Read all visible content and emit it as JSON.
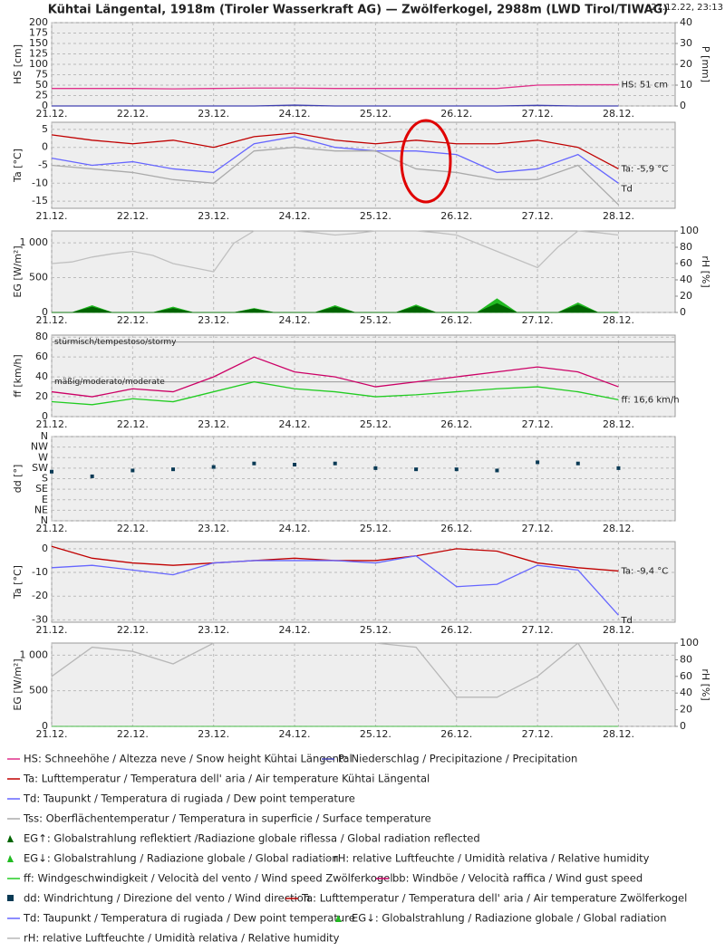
{
  "header": {
    "title": "Kühtai Längental, 1918m (Tiroler Wasserkraft AG) — Zwölferkogel, 2988m (LWD Tirol/TIWAG)",
    "timestamp": "27.12.22, 23:13"
  },
  "chart_data": [
    {
      "type": "line",
      "xlim": [
        21,
        28.7
      ],
      "xticks": [
        {
          "value": 21,
          "label": "21.12."
        },
        {
          "value": 22,
          "label": "22.12."
        },
        {
          "value": 23,
          "label": "23.12."
        },
        {
          "value": 24,
          "label": "24.12."
        },
        {
          "value": 25,
          "label": "25.12."
        },
        {
          "value": 26,
          "label": "26.12."
        },
        {
          "value": 27,
          "label": "27.12."
        },
        {
          "value": 28,
          "label": "28.12."
        }
      ],
      "ylim": [
        0,
        200
      ],
      "yticks": [
        0,
        25,
        50,
        75,
        100,
        125,
        150,
        175,
        200
      ],
      "ylabel": "HS [cm]",
      "y2lim": [
        0,
        40
      ],
      "y2ticks": [
        0,
        10,
        20,
        30,
        40
      ],
      "y2label": "P [mm]",
      "grid": true,
      "x": [
        21,
        21.5,
        22,
        22.5,
        23,
        23.5,
        24,
        24.5,
        25,
        25.5,
        26,
        26.5,
        27,
        27.5,
        28
      ],
      "series": [
        {
          "name": "HS: Schneehöhe / Altezza neve / Snow height Kühtai Längental",
          "color": "#e0308a",
          "values": [
            42,
            42,
            42,
            41,
            42,
            43,
            43,
            42,
            42,
            42,
            42,
            42,
            50,
            51,
            51
          ]
        },
        {
          "name": "P: Niederschlag / Precipitazione / Precipitation",
          "color": "#4040b0",
          "axis": "y2",
          "values": [
            0,
            0,
            0,
            0,
            0,
            0,
            0.4,
            0,
            0,
            0,
            0,
            0,
            0.3,
            0,
            0
          ]
        }
      ],
      "annotations": [
        {
          "text": "HS: 51 cm",
          "series": 0
        }
      ]
    },
    {
      "type": "line",
      "xlim": [
        21,
        28.7
      ],
      "xticks": [
        {
          "value": 21,
          "label": "21.12."
        },
        {
          "value": 22,
          "label": "22.12."
        },
        {
          "value": 23,
          "label": "23.12."
        },
        {
          "value": 24,
          "label": "24.12."
        },
        {
          "value": 25,
          "label": "25.12."
        },
        {
          "value": 26,
          "label": "26.12."
        },
        {
          "value": 27,
          "label": "27.12."
        },
        {
          "value": 28,
          "label": "28.12."
        }
      ],
      "ylim": [
        -17,
        7
      ],
      "yticks": [
        -15,
        -10,
        -5,
        0,
        5
      ],
      "ylabel": "Ta [°C]",
      "grid": true,
      "x": [
        21,
        21.5,
        22,
        22.5,
        23,
        23.5,
        24,
        24.5,
        25,
        25.5,
        26,
        26.5,
        27,
        27.5,
        28
      ],
      "series": [
        {
          "name": "Ta: Lufttemperatur / Temperatura dell' aria / Air temperature Kühtai Längental",
          "color": "#c00000",
          "values": [
            3.5,
            2,
            1,
            2,
            0,
            3,
            4,
            2,
            1,
            2,
            1,
            1,
            2,
            0,
            -6
          ]
        },
        {
          "name": "Td: Taupunkt / Temperatura di rugiada / Dew point temperature",
          "color": "#6666ff",
          "values": [
            -3,
            -5,
            -4,
            -6,
            -7,
            1,
            3,
            0,
            -1,
            -1,
            -2,
            -7,
            -6,
            -2,
            -10
          ]
        },
        {
          "name": "Tss: Oberflächentemperatur / Temperatura in superficie / Surface temperature",
          "color": "#aaaaaa",
          "values": [
            -5,
            -6,
            -7,
            -9,
            -10,
            -1,
            0,
            -1,
            -1,
            -6,
            -7,
            -9,
            -9,
            -5,
            -16
          ]
        }
      ],
      "annotations": [
        {
          "text": "Ta: -5,9 °C",
          "series": 0
        },
        {
          "text": "Td",
          "series": 1
        }
      ]
    },
    {
      "type": "line",
      "xlim": [
        21,
        28.7
      ],
      "xticks": [
        {
          "value": 21,
          "label": "21.12."
        },
        {
          "value": 22,
          "label": "22.12."
        },
        {
          "value": 23,
          "label": "23.12."
        },
        {
          "value": 24,
          "label": "24.12."
        },
        {
          "value": 25,
          "label": "25.12."
        },
        {
          "value": 26,
          "label": "26.12."
        },
        {
          "value": 27,
          "label": "27.12."
        },
        {
          "value": 28,
          "label": "28.12."
        }
      ],
      "ylim": [
        0,
        1170
      ],
      "yticks": [
        0,
        500,
        {
          "value": 1000,
          "label": "1 000"
        }
      ],
      "ylabel": "EG [W/m²]",
      "y2lim": [
        0,
        100
      ],
      "y2ticks": [
        0,
        20,
        40,
        60,
        80,
        100
      ],
      "y2label": "rH [%]",
      "grid": true,
      "x": [
        21,
        21.25,
        21.5,
        21.75,
        22,
        22.25,
        22.5,
        22.75,
        23,
        23.25,
        23.5,
        23.75,
        24,
        24.25,
        24.5,
        24.75,
        25,
        25.25,
        25.5,
        25.75,
        26,
        26.25,
        26.5,
        26.75,
        27,
        27.25,
        27.5,
        27.75,
        28
      ],
      "series": [
        {
          "name": "EG↓: Globalstrahlung / Radiazione globale / Global radiation",
          "color": "#22bb22",
          "type": "area",
          "values": [
            0,
            0,
            100,
            0,
            0,
            0,
            80,
            0,
            0,
            0,
            60,
            0,
            0,
            0,
            100,
            0,
            0,
            0,
            110,
            0,
            0,
            0,
            200,
            0,
            0,
            0,
            140,
            0,
            0
          ]
        },
        {
          "name": "EG↑: Globalstrahlung reflektiert /Radiazione globale riflessa / Global radiation reflected",
          "color": "#006400",
          "type": "area",
          "values": [
            0,
            0,
            80,
            0,
            0,
            0,
            60,
            0,
            0,
            0,
            50,
            0,
            0,
            0,
            80,
            0,
            0,
            0,
            90,
            0,
            0,
            0,
            130,
            0,
            0,
            0,
            110,
            0,
            0
          ]
        },
        {
          "name": "rH: relative Luftfeuchte / Umidità relativa / Relative humidity",
          "color": "#c0c0c0",
          "axis": "y2",
          "values": [
            60,
            62,
            68,
            72,
            75,
            70,
            60,
            55,
            50,
            85,
            100,
            100,
            100,
            98,
            95,
            97,
            100,
            100,
            100,
            98,
            95,
            85,
            75,
            65,
            55,
            80,
            100,
            98,
            95
          ]
        }
      ]
    },
    {
      "type": "line",
      "xlim": [
        21,
        28.7
      ],
      "xticks": [
        {
          "value": 21,
          "label": "21.12."
        },
        {
          "value": 22,
          "label": "22.12."
        },
        {
          "value": 23,
          "label": "23.12."
        },
        {
          "value": 24,
          "label": "24.12."
        },
        {
          "value": 25,
          "label": "25.12."
        },
        {
          "value": 26,
          "label": "26.12."
        },
        {
          "value": 27,
          "label": "27.12."
        },
        {
          "value": 28,
          "label": "28.12."
        }
      ],
      "ylim": [
        0,
        82
      ],
      "yticks": [
        0,
        20,
        40,
        60,
        80
      ],
      "ylabel": "ff [km/h]",
      "grid": true,
      "thresholds": [
        {
          "value": 75,
          "label": "stürmisch/tempestoso/stormy"
        },
        {
          "value": 35,
          "label": "mäßig/moderato/moderate"
        }
      ],
      "x": [
        21,
        21.5,
        22,
        22.5,
        23,
        23.5,
        24,
        24.5,
        25,
        25.5,
        26,
        26.5,
        27,
        27.5,
        28
      ],
      "series": [
        {
          "name": "ff: Windgeschwindigkeit / Velocità del vento / Wind speed Zwölferkogel",
          "color": "#22cc22",
          "values": [
            15,
            12,
            18,
            15,
            25,
            35,
            28,
            25,
            20,
            22,
            25,
            28,
            30,
            25,
            17
          ]
        },
        {
          "name": "bb: Windböe / Velocità raffica / Wind gust speed",
          "color": "#cc0066",
          "values": [
            25,
            20,
            28,
            25,
            40,
            60,
            45,
            40,
            30,
            35,
            40,
            45,
            50,
            45,
            30
          ]
        }
      ],
      "annotations": [
        {
          "text": "ff: 16,6 km/h",
          "series": 0
        }
      ]
    },
    {
      "type": "scatter",
      "xlim": [
        21,
        28.7
      ],
      "xticks": [
        {
          "value": 21,
          "label": "21.12."
        },
        {
          "value": 22,
          "label": "22.12."
        },
        {
          "value": 23,
          "label": "23.12."
        },
        {
          "value": 24,
          "label": "24.12."
        },
        {
          "value": 25,
          "label": "25.12."
        },
        {
          "value": 26,
          "label": "26.12."
        },
        {
          "value": 27,
          "label": "27.12."
        },
        {
          "value": 28,
          "label": "28.12."
        }
      ],
      "ylim": [
        0,
        360
      ],
      "yticks": [
        {
          "value": 0,
          "label": "N"
        },
        {
          "value": 45,
          "label": "NE"
        },
        {
          "value": 90,
          "label": "E"
        },
        {
          "value": 135,
          "label": "SE"
        },
        {
          "value": 180,
          "label": "S"
        },
        {
          "value": 225,
          "label": "SW"
        },
        {
          "value": 270,
          "label": "W"
        },
        {
          "value": 315,
          "label": "NW"
        },
        {
          "value": 360,
          "label": "N"
        }
      ],
      "ylabel": "dd [°]",
      "grid": true,
      "x": [
        21,
        21.5,
        22,
        22.5,
        23,
        23.5,
        24,
        24.5,
        25,
        25.5,
        26,
        26.5,
        27,
        27.5,
        28
      ],
      "series": [
        {
          "name": "dd: Windrichtung / Direzione del vento / Wind direction",
          "color": "#0a3a55",
          "values": [
            210,
            190,
            215,
            220,
            230,
            245,
            240,
            245,
            225,
            220,
            220,
            215,
            250,
            245,
            225
          ]
        }
      ]
    },
    {
      "type": "line",
      "xlim": [
        21,
        28.7
      ],
      "xticks": [
        {
          "value": 21,
          "label": "21.12."
        },
        {
          "value": 22,
          "label": "22.12."
        },
        {
          "value": 23,
          "label": "23.12."
        },
        {
          "value": 24,
          "label": "24.12."
        },
        {
          "value": 25,
          "label": "25.12."
        },
        {
          "value": 26,
          "label": "26.12."
        },
        {
          "value": 27,
          "label": "27.12."
        },
        {
          "value": 28,
          "label": "28.12."
        }
      ],
      "ylim": [
        -31,
        3
      ],
      "yticks": [
        -30,
        -20,
        -10,
        0
      ],
      "ylabel": "Ta [°C]",
      "grid": true,
      "x": [
        21,
        21.5,
        22,
        22.5,
        23,
        23.5,
        24,
        24.5,
        25,
        25.5,
        26,
        26.5,
        27,
        27.5,
        28
      ],
      "series": [
        {
          "name": "Ta: Lufttemperatur / Temperatura dell' aria / Air temperature Zwölferkogel",
          "color": "#c00000",
          "values": [
            1,
            -4,
            -6,
            -7,
            -6,
            -5,
            -4,
            -5,
            -5,
            -3,
            0,
            -1,
            -6,
            -8,
            -9.4
          ]
        },
        {
          "name": "Td: Taupunkt / Temperatura di rugiada / Dew point temperature",
          "color": "#6666ff",
          "values": [
            -8,
            -7,
            -9,
            -11,
            -6,
            -5,
            -5,
            -5,
            -6,
            -3,
            -16,
            -15,
            -7,
            -9,
            -28
          ]
        }
      ],
      "annotations": [
        {
          "text": "Ta: -9,4 °C",
          "series": 0
        },
        {
          "text": "Td",
          "series": 1
        }
      ]
    },
    {
      "type": "line",
      "xlim": [
        21,
        28.7
      ],
      "xticks": [
        {
          "value": 21,
          "label": "21.12."
        },
        {
          "value": 22,
          "label": "22.12."
        },
        {
          "value": 23,
          "label": "23.12."
        },
        {
          "value": 24,
          "label": "24.12."
        },
        {
          "value": 25,
          "label": "25.12."
        },
        {
          "value": 26,
          "label": "26.12."
        },
        {
          "value": 27,
          "label": "27.12."
        },
        {
          "value": 28,
          "label": "28.12."
        }
      ],
      "ylim": [
        0,
        1170
      ],
      "yticks": [
        0,
        500,
        {
          "value": 1000,
          "label": "1 000"
        }
      ],
      "ylabel": "EG [W/m²]",
      "y2lim": [
        0,
        100
      ],
      "y2ticks": [
        0,
        20,
        40,
        60,
        80,
        100
      ],
      "y2label": "rH [%]",
      "grid": true,
      "x": [
        21,
        21.5,
        22,
        22.5,
        23,
        23.5,
        24,
        24.5,
        25,
        25.5,
        26,
        26.5,
        27,
        27.5,
        28
      ],
      "series": [
        {
          "name": "EG↓: Globalstrahlung / Radiazione globale / Global radiation",
          "color": "#22bb22",
          "type": "area",
          "values": [
            0,
            0,
            0,
            0,
            0,
            0,
            0,
            0,
            0,
            0,
            0,
            0,
            0,
            0,
            0
          ]
        },
        {
          "name": "rH: relative Luftfeuchte / Umidità relativa / Relative humidity",
          "color": "#b8b8b8",
          "axis": "y2",
          "values": [
            60,
            95,
            90,
            75,
            100,
            100,
            100,
            100,
            100,
            95,
            35,
            35,
            60,
            100,
            20
          ]
        }
      ]
    }
  ]
}
